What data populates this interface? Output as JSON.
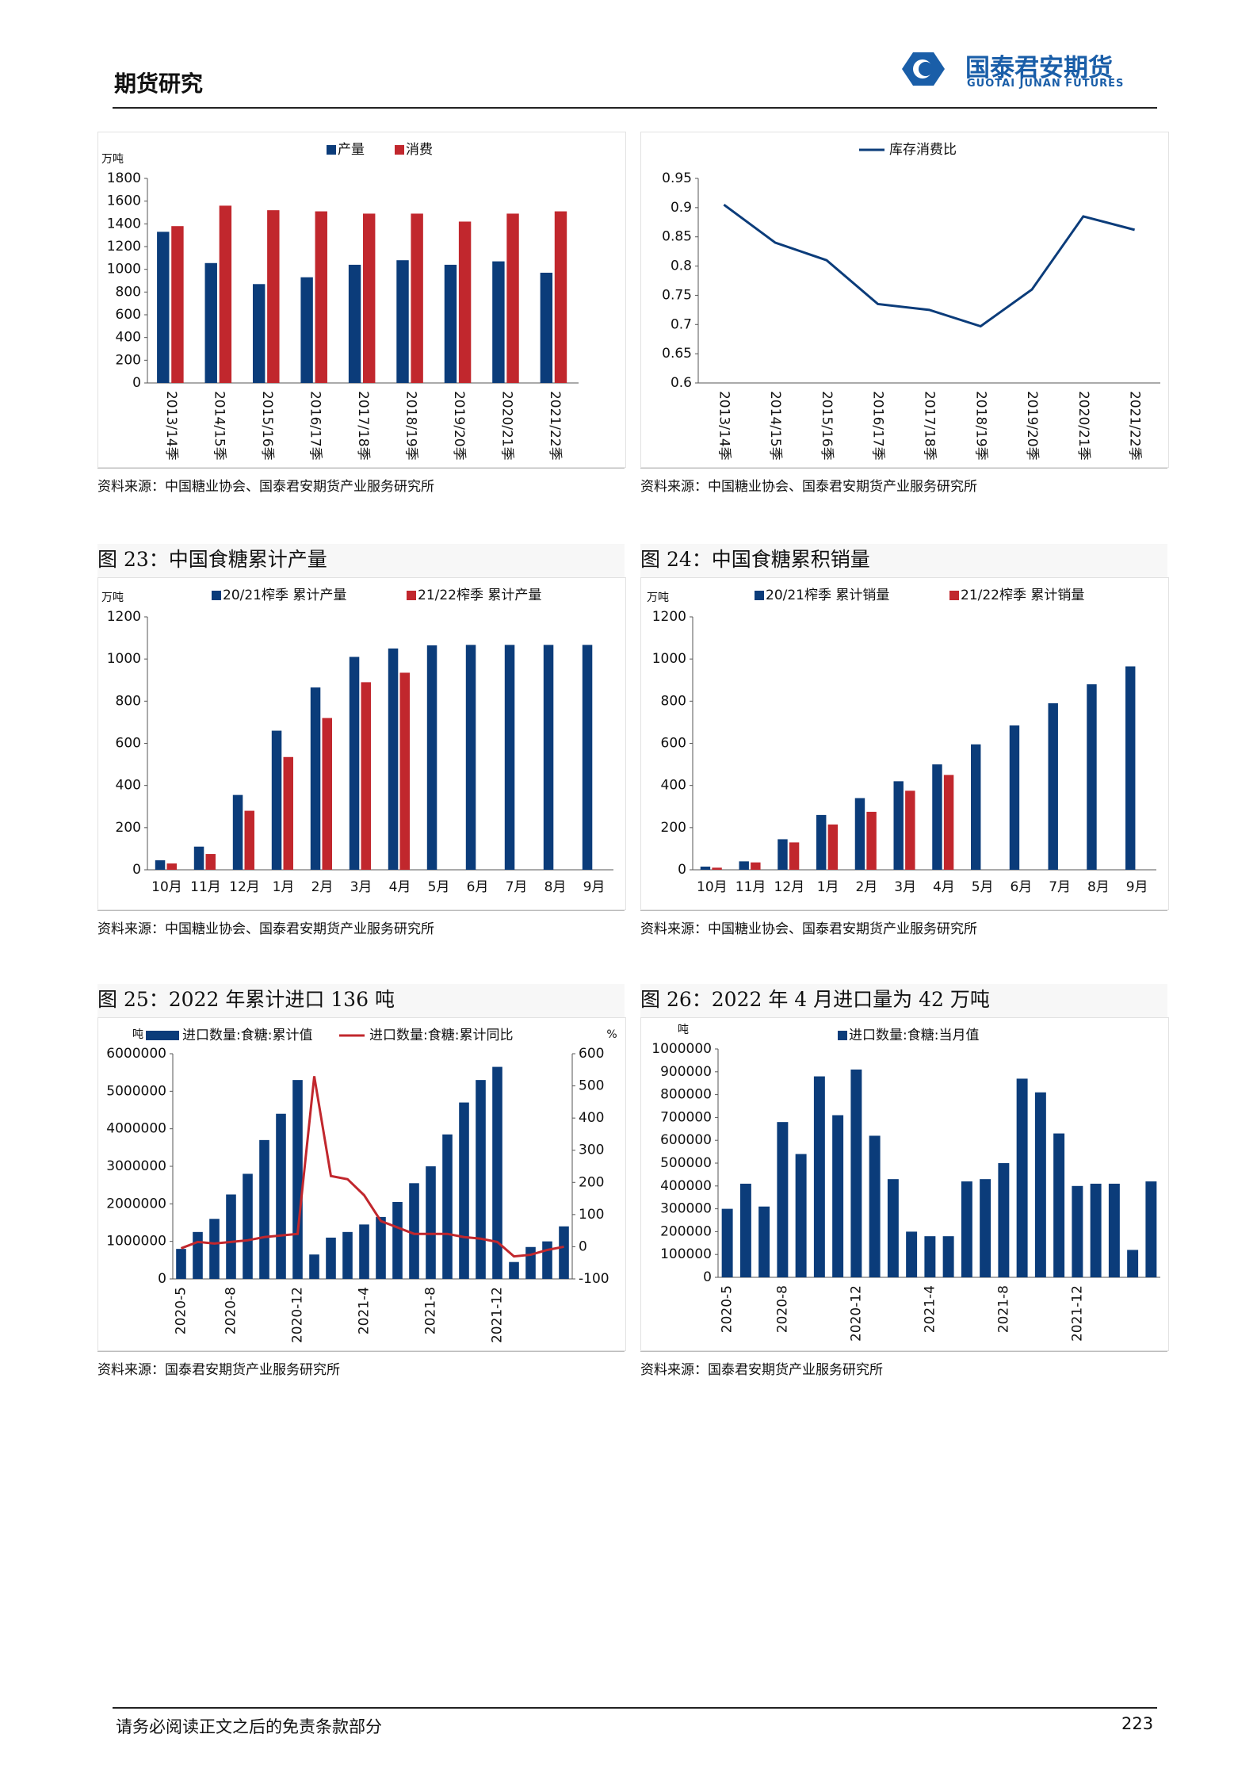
{
  "header": {
    "title": "期货研究",
    "logo": "国泰君安期货",
    "logo_en": "GUOTAI JUNAN FUTURES"
  },
  "chart_data": [
    {
      "type": "bar",
      "y_unit": "万吨",
      "categories": [
        "2013/14季",
        "2014/15季",
        "2015/16季",
        "2016/17季",
        "2017/18季",
        "2018/19季",
        "2019/20季",
        "2020/21季",
        "2021/22季"
      ],
      "series": [
        {
          "name": "产量",
          "color": "#0b3c7a",
          "values": [
            1330,
            1055,
            870,
            930,
            1040,
            1080,
            1040,
            1070,
            970
          ]
        },
        {
          "name": "消费",
          "color": "#c1272d",
          "values": [
            1380,
            1560,
            1520,
            1510,
            1490,
            1490,
            1420,
            1490,
            1510
          ]
        }
      ],
      "ylim": [
        0,
        1800
      ],
      "yticks": [
        0,
        200,
        400,
        600,
        800,
        1000,
        1200,
        1400,
        1600,
        1800
      ],
      "grid": false,
      "source": "资料来源：中国糖业协会、国泰君安期货产业服务研究所"
    },
    {
      "type": "line",
      "categories": [
        "2013/14季",
        "2014/15季",
        "2015/16季",
        "2016/17季",
        "2017/18季",
        "2018/19季",
        "2019/20季",
        "2020/21季",
        "2021/22季"
      ],
      "series": [
        {
          "name": "库存消费比",
          "color": "#0b3c7a",
          "values": [
            0.905,
            0.84,
            0.81,
            0.735,
            0.725,
            0.697,
            0.76,
            0.885,
            0.862
          ]
        }
      ],
      "ylim": [
        0.6,
        0.95
      ],
      "yticks": [
        0.6,
        0.65,
        0.7,
        0.75,
        0.8,
        0.85,
        0.9,
        0.95
      ],
      "grid": false,
      "source": "资料来源：中国糖业协会、国泰君安期货产业服务研究所"
    },
    {
      "type": "bar",
      "title": "图 23：中国食糖累计产量",
      "y_unit": "万吨",
      "categories": [
        "10月",
        "11月",
        "12月",
        "1月",
        "2月",
        "3月",
        "4月",
        "5月",
        "6月",
        "7月",
        "8月",
        "9月"
      ],
      "series": [
        {
          "name": "20/21榨季 累计产量",
          "color": "#0b3c7a",
          "values": [
            45,
            110,
            355,
            660,
            865,
            1010,
            1050,
            1065,
            1067,
            1067,
            1067,
            1067
          ]
        },
        {
          "name": "21/22榨季 累计产量",
          "color": "#c1272d",
          "values": [
            30,
            75,
            280,
            535,
            720,
            890,
            935,
            null,
            null,
            null,
            null,
            null
          ]
        }
      ],
      "ylim": [
        0,
        1200
      ],
      "yticks": [
        0,
        200,
        400,
        600,
        800,
        1000,
        1200
      ],
      "grid": false,
      "source": "资料来源：中国糖业协会、国泰君安期货产业服务研究所"
    },
    {
      "type": "bar",
      "title": "图 24：中国食糖累积销量",
      "y_unit": "万吨",
      "categories": [
        "10月",
        "11月",
        "12月",
        "1月",
        "2月",
        "3月",
        "4月",
        "5月",
        "6月",
        "7月",
        "8月",
        "9月"
      ],
      "series": [
        {
          "name": "20/21榨季 累计销量",
          "color": "#0b3c7a",
          "values": [
            15,
            40,
            145,
            260,
            340,
            420,
            500,
            595,
            685,
            790,
            880,
            965
          ]
        },
        {
          "name": "21/22榨季 累计销量",
          "color": "#c1272d",
          "values": [
            10,
            35,
            130,
            215,
            275,
            375,
            450,
            null,
            null,
            null,
            null,
            null
          ]
        }
      ],
      "ylim": [
        0,
        1200
      ],
      "yticks": [
        0,
        200,
        400,
        600,
        800,
        1000,
        1200
      ],
      "grid": false,
      "source": "资料来源：中国糖业协会、国泰君安期货产业服务研究所"
    },
    {
      "type": "combo",
      "title": "图 25：2022 年累计进口 136 吨",
      "y_unit": "吨",
      "y2_unit": "%",
      "categories": [
        "2020-5",
        null,
        null,
        "2020-8",
        null,
        null,
        null,
        "2020-12",
        null,
        null,
        null,
        "2021-4",
        null,
        null,
        null,
        "2021-8",
        null,
        null,
        null,
        "2021-12",
        null,
        null,
        null,
        null
      ],
      "series": [
        {
          "name": "进口数量:食糖:累计值",
          "color": "#0b3c7a",
          "values": [
            800000,
            1250000,
            1600000,
            2250000,
            2800000,
            3700000,
            4400000,
            5300000,
            650000,
            1100000,
            1250000,
            1450000,
            1650000,
            2050000,
            2550000,
            3000000,
            3850000,
            4700000,
            5300000,
            5650000,
            450000,
            850000,
            1000000,
            1400000
          ]
        },
        {
          "name": "进口数量:食糖:累计同比",
          "color": "#c1272d",
          "axis": "y2",
          "values": [
            -5,
            15,
            10,
            15,
            20,
            30,
            35,
            40,
            530,
            220,
            210,
            160,
            80,
            60,
            40,
            40,
            40,
            30,
            25,
            15,
            -30,
            -25,
            -10,
            0
          ]
        }
      ],
      "ylim": [
        0,
        6000000
      ],
      "yticks": [
        0,
        1000000,
        2000000,
        3000000,
        4000000,
        5000000,
        6000000
      ],
      "y2lim": [
        -100,
        600
      ],
      "y2ticks": [
        -100,
        0,
        100,
        200,
        300,
        400,
        500,
        600
      ],
      "grid": false,
      "source": "资料来源：国泰君安期货产业服务研究所"
    },
    {
      "type": "bar",
      "title": "图 26：2022 年 4 月进口量为 42 万吨",
      "y_unit": "吨",
      "categories": [
        "2020-5",
        null,
        null,
        "2020-8",
        null,
        null,
        null,
        "2020-12",
        null,
        null,
        null,
        "2021-4",
        null,
        null,
        null,
        "2021-8",
        null,
        null,
        null,
        "2021-12",
        null,
        null,
        null,
        null
      ],
      "series": [
        {
          "name": "进口数量:食糖:当月值",
          "color": "#0b3c7a",
          "values": [
            300000,
            410000,
            310000,
            680000,
            540000,
            880000,
            710000,
            910000,
            620000,
            430000,
            200000,
            180000,
            180000,
            420000,
            430000,
            500000,
            870000,
            810000,
            630000,
            400000,
            410000,
            410000,
            120000,
            420000
          ]
        }
      ],
      "ylim": [
        0,
        1000000
      ],
      "yticks": [
        0,
        100000,
        200000,
        300000,
        400000,
        500000,
        600000,
        700000,
        800000,
        900000,
        1000000
      ],
      "grid": false,
      "source": "资料来源：国泰君安期货产业服务研究所"
    }
  ],
  "footer": {
    "note": "请务必阅读正文之后的免责条款部分",
    "page": "223"
  }
}
